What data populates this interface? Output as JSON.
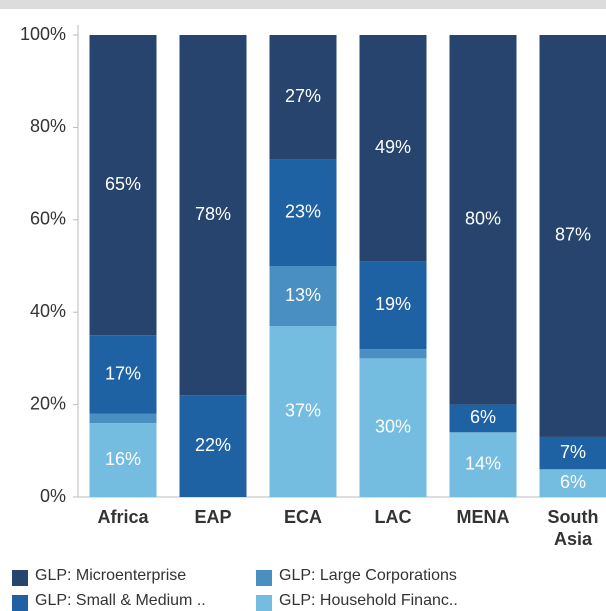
{
  "chart_data": {
    "type": "stacked_bar",
    "categories": [
      "Africa",
      "EAP",
      "ECA",
      "LAC",
      "MENA",
      "South Asia"
    ],
    "series": [
      {
        "name": "GLP: Household Financ..",
        "color": "#74bde0",
        "values": [
          16,
          0,
          37,
          30,
          14,
          6
        ],
        "value_labels": [
          "16%",
          null,
          "37%",
          "30%",
          "14%",
          "6%"
        ]
      },
      {
        "name": "GLP: Large Corporations",
        "color": "#4a8fc2",
        "values": [
          2,
          0,
          13,
          2,
          0,
          0
        ],
        "value_labels": [
          null,
          null,
          "13%",
          null,
          null,
          null
        ]
      },
      {
        "name": "GLP: Small & Medium ..",
        "color": "#1f62a3",
        "values": [
          17,
          22,
          23,
          19,
          6,
          7
        ],
        "value_labels": [
          "17%",
          "22%",
          "23%",
          "19%",
          "6%",
          "7%"
        ]
      },
      {
        "name": "GLP: Microenterprise",
        "color": "#26446d",
        "values": [
          65,
          78,
          27,
          49,
          80,
          87
        ],
        "value_labels": [
          "65%",
          "78%",
          "27%",
          "49%",
          "80%",
          "87%"
        ]
      }
    ],
    "ylim": [
      0,
      100
    ],
    "yticks": [
      {
        "value": 0,
        "label": "0%"
      },
      {
        "value": 20,
        "label": "20%"
      },
      {
        "value": 40,
        "label": "40%"
      },
      {
        "value": 60,
        "label": "60%"
      },
      {
        "value": 80,
        "label": "80%"
      },
      {
        "value": 100,
        "label": "100%"
      }
    ]
  }
}
